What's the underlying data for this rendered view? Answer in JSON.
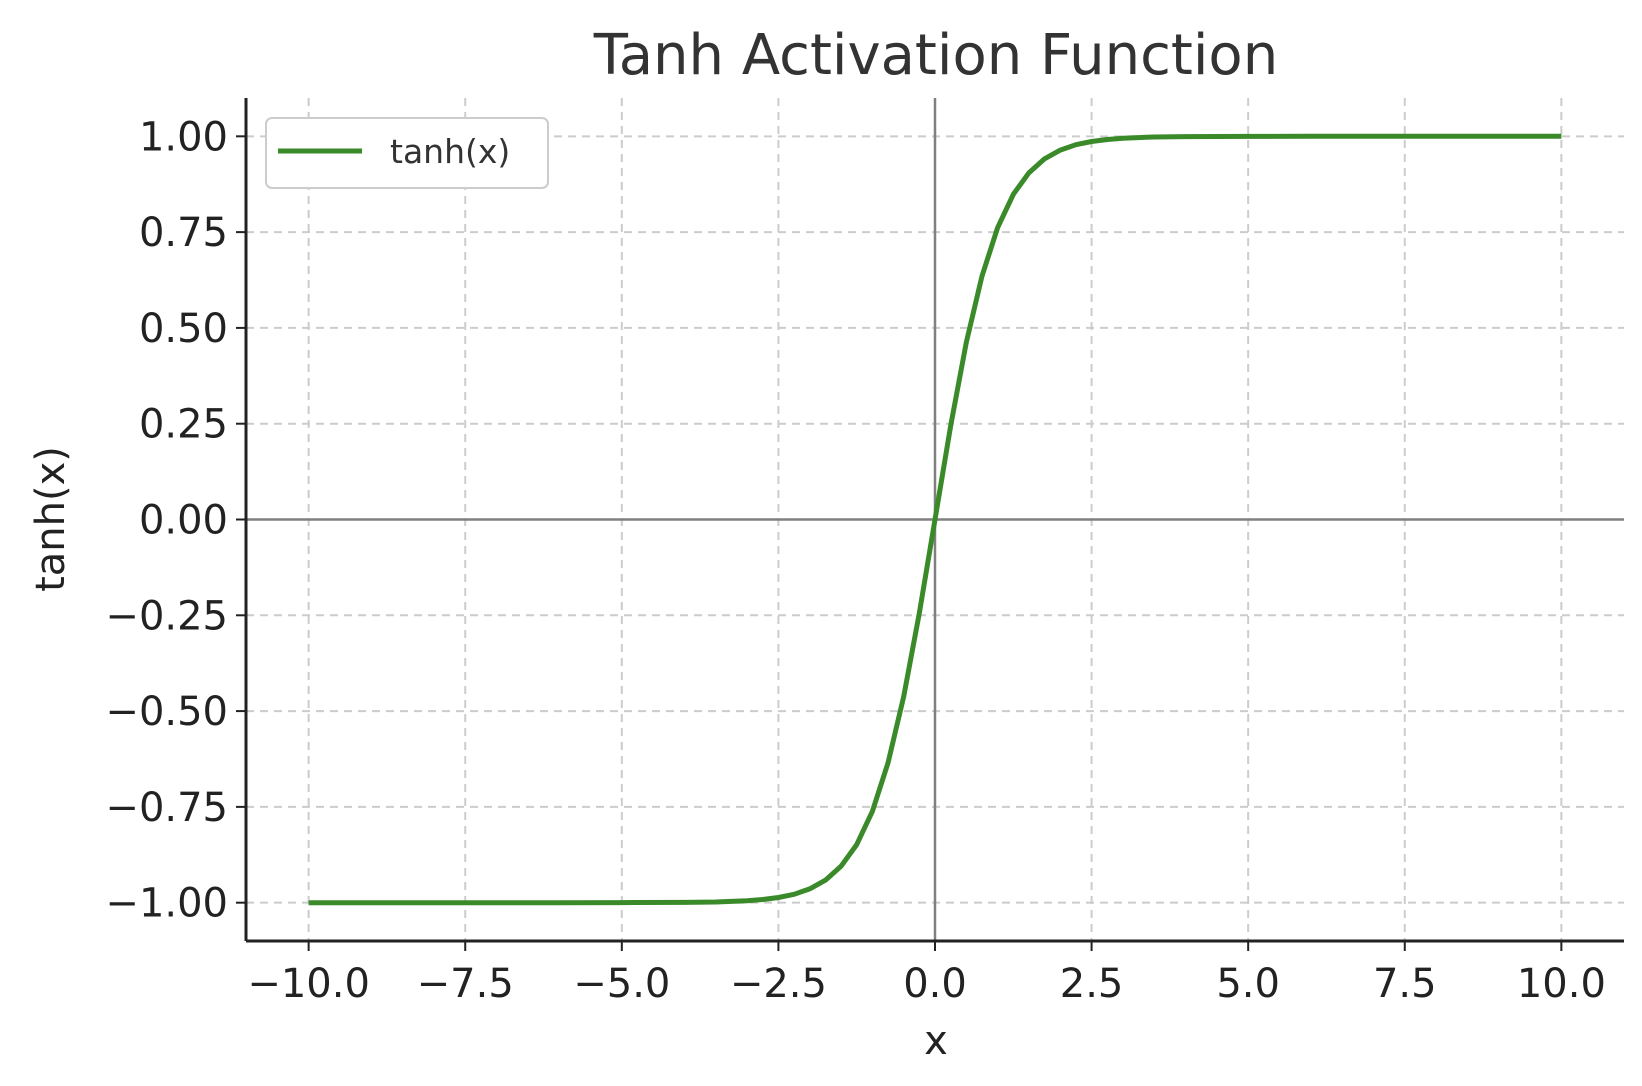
{
  "chart_data": {
    "type": "line",
    "title": "Tanh Activation Function",
    "xlabel": "x",
    "ylabel": "tanh(x)",
    "xlim": [
      -11,
      11
    ],
    "ylim": [
      -1.1,
      1.1
    ],
    "x_ticks": [
      -10.0,
      -7.5,
      -5.0,
      -2.5,
      0.0,
      2.5,
      5.0,
      7.5,
      10.0
    ],
    "x_tick_labels": [
      "−10.0",
      "−7.5",
      "−5.0",
      "−2.5",
      "0.0",
      "2.5",
      "5.0",
      "7.5",
      "10.0"
    ],
    "y_ticks": [
      1.0,
      0.75,
      0.5,
      0.25,
      0.0,
      -0.25,
      -0.5,
      -0.75,
      -1.0
    ],
    "y_tick_labels": [
      "1.00",
      "0.75",
      "0.50",
      "0.25",
      "0.00",
      "−0.25",
      "−0.50",
      "−0.75",
      "−1.00"
    ],
    "grid": true,
    "legend": "top-left",
    "series": [
      {
        "name": "tanh(x)",
        "color": "#3a8a2a",
        "x": [
          -10,
          -8,
          -6,
          -5,
          -4,
          -3.5,
          -3,
          -2.75,
          -2.5,
          -2.25,
          -2,
          -1.75,
          -1.5,
          -1.25,
          -1,
          -0.75,
          -0.5,
          -0.25,
          0,
          0.25,
          0.5,
          0.75,
          1,
          1.25,
          1.5,
          1.75,
          2,
          2.25,
          2.5,
          2.75,
          3,
          3.5,
          4,
          5,
          6,
          8,
          10
        ],
        "y": [
          -1.0,
          -1.0,
          -1.0,
          -0.9999,
          -0.9993,
          -0.9982,
          -0.9951,
          -0.9918,
          -0.9866,
          -0.978,
          -0.964,
          -0.9414,
          -0.9051,
          -0.8483,
          -0.7616,
          -0.6351,
          -0.4621,
          -0.2449,
          0.0,
          0.2449,
          0.4621,
          0.6351,
          0.7616,
          0.8483,
          0.9051,
          0.9414,
          0.964,
          0.978,
          0.9866,
          0.9918,
          0.9951,
          0.9982,
          0.9993,
          0.9999,
          1.0,
          1.0,
          1.0
        ]
      }
    ],
    "reference_lines": {
      "x": 0,
      "y": 0,
      "color": "#808080"
    },
    "grid_color": "#cccccc",
    "axis_color": "#222222"
  }
}
